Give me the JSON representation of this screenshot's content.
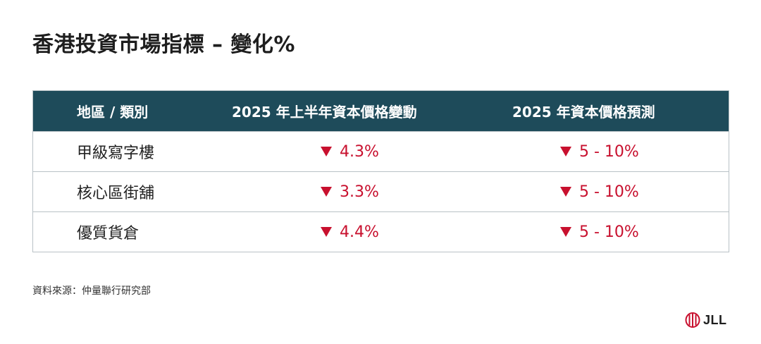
{
  "title": "香港投資市場指標 – 變化%",
  "table": {
    "headers": [
      "地區 / 類別",
      "2025 年上半年資本價格變動",
      "2025 年資本價格預測"
    ],
    "rows": [
      {
        "category": "甲級寫字樓",
        "change": "4.3%",
        "forecast": "5 - 10%"
      },
      {
        "category": "核心區街舖",
        "change": "3.3%",
        "forecast": "5 - 10%"
      },
      {
        "category": "優質貨倉",
        "change": "4.4%",
        "forecast": "5 - 10%"
      }
    ],
    "trend_icon": "down-triangle-icon",
    "header_color": "#1e4b5a",
    "decrease_color": "#c8102e"
  },
  "source": "資料來源：仲量聯行研究部",
  "logo": {
    "text": "JLL",
    "icon": "jll-logo-icon",
    "color": "#c8102e"
  }
}
